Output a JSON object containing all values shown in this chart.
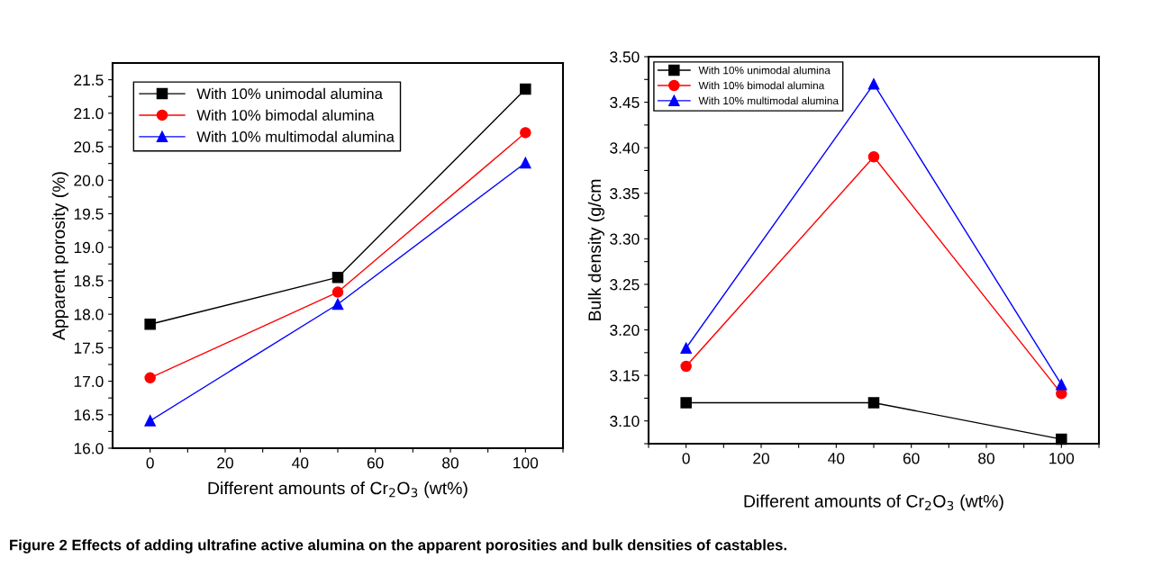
{
  "chart_data": [
    {
      "type": "line",
      "ylabel": "Apparent porosity (%)",
      "xlabel": "Different amounts of Cr$_{2}$O$_{3}$ (wt%)",
      "x": [
        0,
        50,
        100
      ],
      "series": [
        {
          "name": "With 10% unimodal alumina",
          "color": "#000000",
          "marker": "square",
          "values": [
            17.85,
            18.55,
            21.36
          ]
        },
        {
          "name": "With 10% bimodal alumina",
          "color": "#ff0000",
          "marker": "circle",
          "values": [
            17.05,
            18.33,
            20.71
          ]
        },
        {
          "name": "With 10% multimodal alumina",
          "color": "#0000ff",
          "marker": "triangle",
          "values": [
            16.41,
            18.15,
            20.26
          ]
        }
      ],
      "xlim": [
        -10,
        110
      ],
      "xticks": [
        0,
        {
          "value": 10,
          "label": null
        },
        20,
        {
          "value": 30,
          "label": null
        },
        40,
        {
          "value": 50,
          "label": null
        },
        60,
        {
          "value": 70,
          "label": null
        },
        80,
        {
          "value": 90,
          "label": null
        },
        100,
        {
          "value": 110,
          "label": null
        }
      ],
      "ylim": [
        16.0,
        21.75
      ],
      "yticks": [
        {
          "value": 16.0,
          "label": "16.0"
        },
        {
          "value": 16.25,
          "label": null
        },
        {
          "value": 16.5,
          "label": "16.5"
        },
        {
          "value": 16.75,
          "label": null
        },
        {
          "value": 17.0,
          "label": "17.0"
        },
        {
          "value": 17.25,
          "label": null
        },
        {
          "value": 17.5,
          "label": "17.5"
        },
        {
          "value": 17.75,
          "label": null
        },
        {
          "value": 18.0,
          "label": "18.0"
        },
        {
          "value": 18.25,
          "label": null
        },
        {
          "value": 18.5,
          "label": "18.5"
        },
        {
          "value": 18.75,
          "label": null
        },
        {
          "value": 19.0,
          "label": "19.0"
        },
        {
          "value": 19.25,
          "label": null
        },
        {
          "value": 19.5,
          "label": "19.5"
        },
        {
          "value": 19.75,
          "label": null
        },
        {
          "value": 20.0,
          "label": "20.0"
        },
        {
          "value": 20.25,
          "label": null
        },
        {
          "value": 20.5,
          "label": "20.5"
        },
        {
          "value": 20.75,
          "label": null
        },
        {
          "value": 21.0,
          "label": "21.0"
        },
        {
          "value": 21.25,
          "label": null
        },
        {
          "value": 21.5,
          "label": "21.5"
        }
      ],
      "grid": false,
      "legend": "top left",
      "line_style": "solid",
      "annotations": [
        "Figure 2 Effects of adding ultrafine active alumina on the apparent porosities and bulk densities of castables."
      ]
    },
    {
      "type": "line",
      "ylabel": "Bulk density (g/cm",
      "xlabel": "Different amounts of Cr$_{2}$O$_{3}$ (wt%)",
      "x": [
        0,
        50,
        100
      ],
      "series": [
        {
          "name": "With 10% unimodal alumina",
          "color": "#000000",
          "marker": "square",
          "values": [
            3.12,
            3.12,
            3.08
          ]
        },
        {
          "name": "With 10% bimodal alumina",
          "color": "#ff0000",
          "marker": "circle",
          "values": [
            3.16,
            3.39,
            3.13
          ]
        },
        {
          "name": "With 10% multimodal alumina",
          "color": "#0000ff",
          "marker": "triangle",
          "values": [
            3.18,
            3.47,
            3.14
          ]
        }
      ],
      "xlim": [
        -10,
        110
      ],
      "xticks": [
        {
          "value": -10,
          "label": null
        },
        0,
        {
          "value": 10,
          "label": null
        },
        20,
        {
          "value": 30,
          "label": null
        },
        40,
        {
          "value": 50,
          "label": null
        },
        60,
        {
          "value": 70,
          "label": null
        },
        80,
        {
          "value": 90,
          "label": null
        },
        100,
        {
          "value": 110,
          "label": null
        }
      ],
      "ylim": [
        3.075,
        3.5
      ],
      "yticks": [
        {
          "value": 3.075,
          "label": null
        },
        {
          "value": 3.1,
          "label": "3.10"
        },
        {
          "value": 3.125,
          "label": null
        },
        {
          "value": 3.15,
          "label": "3.15"
        },
        {
          "value": 3.175,
          "label": null
        },
        {
          "value": 3.2,
          "label": "3.20"
        },
        {
          "value": 3.225,
          "label": null
        },
        {
          "value": 3.25,
          "label": "3.25"
        },
        {
          "value": 3.275,
          "label": null
        },
        {
          "value": 3.3,
          "label": "3.30"
        },
        {
          "value": 3.325,
          "label": null
        },
        {
          "value": 3.35,
          "label": "3.35"
        },
        {
          "value": 3.375,
          "label": null
        },
        {
          "value": 3.4,
          "label": "3.40"
        },
        {
          "value": 3.425,
          "label": null
        },
        {
          "value": 3.45,
          "label": "3.45"
        },
        {
          "value": 3.475,
          "label": null
        },
        {
          "value": 3.5,
          "label": "3.50"
        }
      ],
      "grid": false,
      "legend": "top left",
      "line_style": "solid"
    }
  ]
}
